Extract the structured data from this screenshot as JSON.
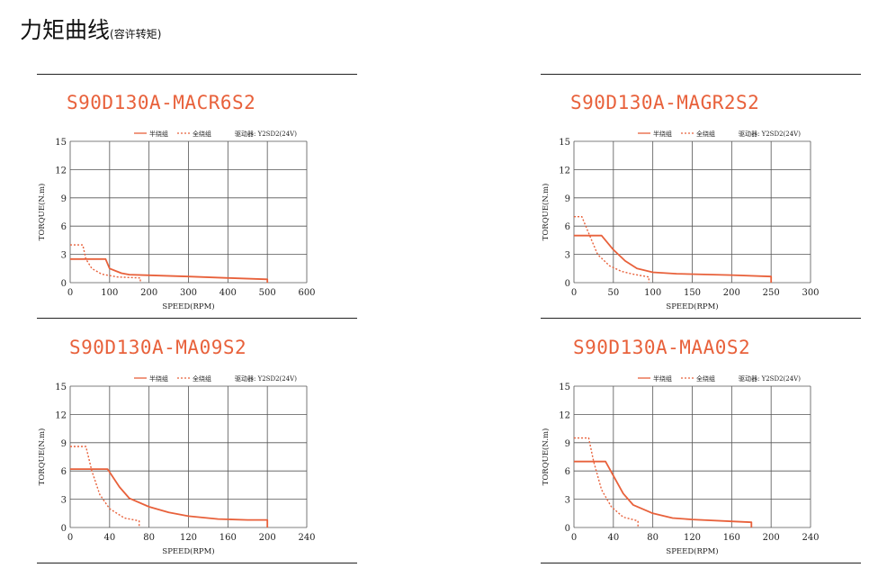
{
  "page": {
    "title": "力矩曲线",
    "subtitle": "(容许转矩)"
  },
  "colors": {
    "curve": "#e8613b",
    "grid": "#555555"
  },
  "chart_data": [
    {
      "type": "line",
      "model": "S90D130A-MACR6S2",
      "xlabel": "SPEED(RPM)",
      "ylabel": "TORQUE(N.m)",
      "driver_label": "驱动器: Y2SD2(24V)",
      "xlim": [
        0,
        600
      ],
      "ylim": [
        0,
        15
      ],
      "xticks": [
        0,
        100,
        200,
        300,
        400,
        500,
        600
      ],
      "yticks": [
        0,
        3,
        6,
        9,
        12,
        15
      ],
      "grid": true,
      "legend": "top",
      "series": [
        {
          "name": "半绕组",
          "style": "solid",
          "x": [
            0,
            90,
            100,
            130,
            150,
            200,
            300,
            400,
            500,
            500
          ],
          "y": [
            2.5,
            2.5,
            1.5,
            1.0,
            0.85,
            0.78,
            0.65,
            0.5,
            0.35,
            0
          ]
        },
        {
          "name": "全绕组",
          "style": "dotted",
          "x": [
            0,
            32,
            40,
            55,
            80,
            120,
            178,
            178
          ],
          "y": [
            4.0,
            4.0,
            2.5,
            1.5,
            0.9,
            0.6,
            0.5,
            0
          ]
        }
      ]
    },
    {
      "type": "line",
      "model": "S90D130A-MAGR2S2",
      "xlabel": "SPEED(RPM)",
      "ylabel": "TORQUE(N.m)",
      "driver_label": "驱动器: Y2SD2(24V)",
      "xlim": [
        0,
        300
      ],
      "ylim": [
        0,
        15
      ],
      "xticks": [
        0,
        50,
        100,
        150,
        200,
        250,
        300
      ],
      "yticks": [
        0,
        3,
        6,
        9,
        12,
        15
      ],
      "grid": true,
      "legend": "top",
      "series": [
        {
          "name": "半绕组",
          "style": "solid",
          "x": [
            0,
            35,
            50,
            65,
            80,
            100,
            130,
            200,
            250,
            250
          ],
          "y": [
            5.0,
            5.0,
            3.5,
            2.3,
            1.5,
            1.1,
            0.95,
            0.8,
            0.65,
            0
          ]
        },
        {
          "name": "全绕组",
          "style": "dotted",
          "x": [
            0,
            10,
            20,
            30,
            45,
            60,
            75,
            95,
            95
          ],
          "y": [
            7.0,
            7.0,
            5.0,
            3.0,
            1.8,
            1.2,
            0.9,
            0.6,
            0
          ]
        }
      ]
    },
    {
      "type": "line",
      "model": "S90D130A-MA09S2",
      "xlabel": "SPEED(RPM)",
      "ylabel": "TORQUE(N.m)",
      "driver_label": "驱动器: Y2SD2(24V)",
      "xlim": [
        0,
        240
      ],
      "ylim": [
        0,
        15
      ],
      "xticks": [
        0,
        40,
        80,
        120,
        160,
        200,
        240
      ],
      "yticks": [
        0,
        3,
        6,
        9,
        12,
        15
      ],
      "grid": true,
      "legend": "top",
      "series": [
        {
          "name": "半绕组",
          "style": "solid",
          "x": [
            0,
            38,
            50,
            60,
            80,
            100,
            120,
            150,
            180,
            200,
            200
          ],
          "y": [
            6.2,
            6.2,
            4.3,
            3.1,
            2.2,
            1.6,
            1.2,
            0.9,
            0.8,
            0.8,
            0
          ]
        },
        {
          "name": "全绕组",
          "style": "dotted",
          "x": [
            0,
            16,
            22,
            30,
            40,
            55,
            70,
            70
          ],
          "y": [
            8.6,
            8.6,
            6.0,
            3.5,
            2.0,
            1.0,
            0.7,
            0
          ]
        }
      ]
    },
    {
      "type": "line",
      "model": "S90D130A-MAA0S2",
      "xlabel": "SPEED(RPM)",
      "ylabel": "TORQUE(N.m)",
      "driver_label": "驱动器: Y2SD2(24V)",
      "xlim": [
        0,
        240
      ],
      "ylim": [
        0,
        15
      ],
      "xticks": [
        0,
        40,
        80,
        120,
        160,
        200,
        240
      ],
      "yticks": [
        0,
        3,
        6,
        9,
        12,
        15
      ],
      "grid": true,
      "legend": "top",
      "series": [
        {
          "name": "半绕组",
          "style": "solid",
          "x": [
            0,
            32,
            40,
            50,
            60,
            80,
            100,
            120,
            160,
            180,
            180
          ],
          "y": [
            7.0,
            7.0,
            5.5,
            3.6,
            2.4,
            1.5,
            1.0,
            0.85,
            0.65,
            0.55,
            0
          ]
        },
        {
          "name": "全绕组",
          "style": "dotted",
          "x": [
            0,
            15,
            20,
            28,
            38,
            50,
            65,
            65
          ],
          "y": [
            9.5,
            9.5,
            7.0,
            4.0,
            2.2,
            1.1,
            0.7,
            0
          ]
        }
      ]
    }
  ]
}
